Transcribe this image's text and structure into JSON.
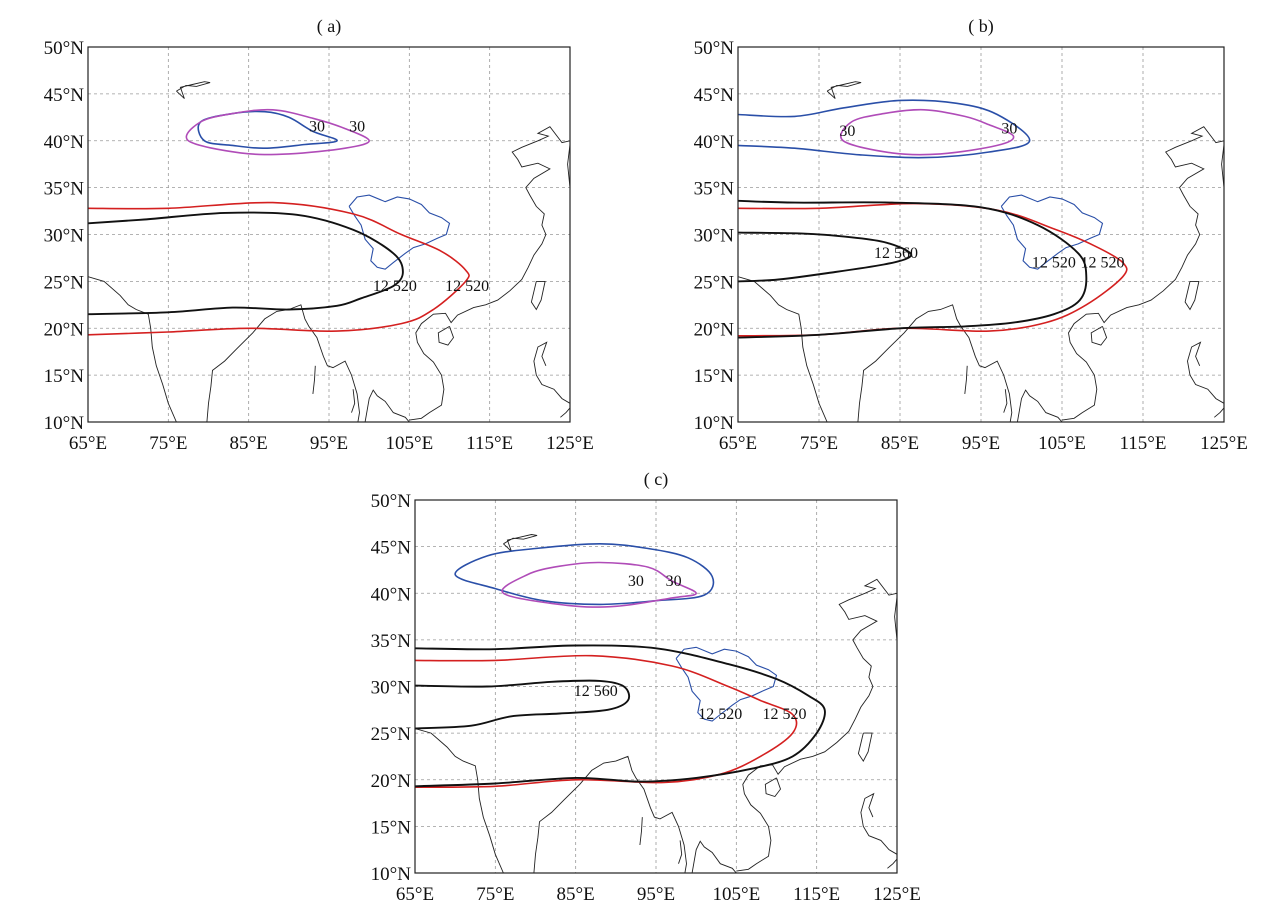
{
  "panels": [
    {
      "id": "a",
      "title": "( a)",
      "lon_ticks": [
        "65°E",
        "75°E",
        "85°E",
        "95°E",
        "105°E",
        "115°E",
        "125°E"
      ],
      "lat_ticks": [
        "10°N",
        "15°N",
        "20°N",
        "25°N",
        "30°N",
        "35°N",
        "40°N",
        "45°N",
        "50°N"
      ],
      "contours": [
        {
          "kind": "red-12520",
          "color": "#d42020",
          "points": [
            [
              65,
              32.8
            ],
            [
              75,
              32.8
            ],
            [
              88,
              33.4
            ],
            [
              98,
              32.2
            ],
            [
              104,
              30
            ],
            [
              109,
              28.2
            ],
            [
              112,
              26.2
            ],
            [
              112,
              25
            ],
            [
              108,
              22
            ],
            [
              104,
              20.5
            ],
            [
              96,
              19.7
            ],
            [
              85,
              20
            ],
            [
              75,
              19.6
            ],
            [
              65,
              19.3
            ]
          ],
          "closed": false
        },
        {
          "kind": "black-12520",
          "color": "#111111",
          "points": [
            [
              65,
              31.2
            ],
            [
              72,
              31.6
            ],
            [
              82,
              32.3
            ],
            [
              91,
              32.1
            ],
            [
              98,
              30.5
            ],
            [
              103,
              28
            ],
            [
              104.2,
              26
            ],
            [
              103,
              24.5
            ],
            [
              99,
              23.2
            ],
            [
              96,
              22.4
            ],
            [
              90,
              22
            ],
            [
              83,
              22.2
            ],
            [
              75,
              21.7
            ],
            [
              65,
              21.5
            ]
          ],
          "closed": false
        },
        {
          "kind": "blue-30",
          "color": "#2a4fa8",
          "points": [
            [
              79,
              42
            ],
            [
              83,
              42.9
            ],
            [
              87,
              43.1
            ],
            [
              90,
              42.5
            ],
            [
              93,
              41
            ],
            [
              96,
              40
            ],
            [
              92,
              39.6
            ],
            [
              87,
              39.2
            ],
            [
              83,
              39.5
            ],
            [
              79.5,
              40
            ]
          ],
          "closed": true
        },
        {
          "kind": "magenta-30",
          "color": "#b04cb8",
          "points": [
            [
              79,
              42
            ],
            [
              83,
              42.9
            ],
            [
              88,
              43.3
            ],
            [
              93,
              42.4
            ],
            [
              97,
              41.3
            ],
            [
              100,
              40
            ],
            [
              97,
              39.2
            ],
            [
              90,
              38.6
            ],
            [
              84,
              38.7
            ],
            [
              77.5,
              40
            ]
          ],
          "closed": true
        }
      ],
      "labels": [
        {
          "text": "30",
          "lon": 93.5,
          "lat": 41
        },
        {
          "text": "30",
          "lon": 98.5,
          "lat": 41
        },
        {
          "text": "12 520",
          "lon": 103.2,
          "lat": 24
        },
        {
          "text": "12 520",
          "lon": 112.2,
          "lat": 24
        }
      ]
    },
    {
      "id": "b",
      "title": "( b)",
      "lon_ticks": [
        "65°E",
        "75°E",
        "85°E",
        "95°E",
        "105°E",
        "115°E",
        "125°E"
      ],
      "lat_ticks": [
        "10°N",
        "15°N",
        "20°N",
        "25°N",
        "30°N",
        "35°N",
        "40°N",
        "45°N",
        "50°N"
      ],
      "contours": [
        {
          "kind": "red-12520",
          "color": "#d42020",
          "points": [
            [
              65,
              32.8
            ],
            [
              75,
              32.8
            ],
            [
              87,
              33.3
            ],
            [
              97,
              32.6
            ],
            [
              104,
              30.6
            ],
            [
              109,
              28.8
            ],
            [
              112.5,
              27
            ],
            [
              112.5,
              25.5
            ],
            [
              108,
              22.5
            ],
            [
              103,
              20.6
            ],
            [
              96,
              19.7
            ],
            [
              85,
              20
            ],
            [
              75,
              19.3
            ],
            [
              65,
              19.2
            ]
          ],
          "closed": false
        },
        {
          "kind": "black-12520",
          "color": "#111111",
          "points": [
            [
              65,
              33.6
            ],
            [
              72,
              33.4
            ],
            [
              84,
              33.4
            ],
            [
              95,
              32.9
            ],
            [
              102,
              31
            ],
            [
              107,
              28
            ],
            [
              108,
              25.5
            ],
            [
              107.2,
              23
            ],
            [
              104,
              21.5
            ],
            [
              99,
              20.6
            ],
            [
              93,
              20.2
            ],
            [
              85,
              20
            ],
            [
              75,
              19.3
            ],
            [
              65,
              19
            ]
          ],
          "closed": false
        },
        {
          "kind": "black-12560",
          "color": "#111111",
          "points": [
            [
              65,
              30.2
            ],
            [
              73,
              30.1
            ],
            [
              79,
              29.7
            ],
            [
              83,
              29.2
            ],
            [
              86,
              28.2
            ],
            [
              86,
              27.5
            ],
            [
              83,
              26.8
            ],
            [
              77,
              26
            ],
            [
              70,
              25.2
            ],
            [
              65,
              25
            ]
          ],
          "closed": false
        },
        {
          "kind": "blue-30",
          "color": "#2a4fa8",
          "points": [
            [
              65,
              42.8
            ],
            [
              72,
              42.6
            ],
            [
              78,
              43.5
            ],
            [
              85,
              44.3
            ],
            [
              92,
              44
            ],
            [
              97,
              42.8
            ],
            [
              101,
              40
            ],
            [
              96,
              38.8
            ],
            [
              88,
              38.2
            ],
            [
              80,
              38.5
            ],
            [
              72,
              39.2
            ],
            [
              65,
              39.5
            ]
          ],
          "closed": false
        },
        {
          "kind": "magenta-30",
          "color": "#b04cb8",
          "points": [
            [
              79,
              42
            ],
            [
              83,
              42.9
            ],
            [
              88,
              43.3
            ],
            [
              93,
              42.6
            ],
            [
              96,
              41.7
            ],
            [
              99,
              40.5
            ],
            [
              97,
              39.5
            ],
            [
              90,
              38.6
            ],
            [
              84,
              38.7
            ],
            [
              78,
              40
            ]
          ],
          "closed": true
        }
      ],
      "labels": [
        {
          "text": "30",
          "lon": 78.5,
          "lat": 40.5
        },
        {
          "text": "30",
          "lon": 98.5,
          "lat": 40.8
        },
        {
          "text": "12 560",
          "lon": 84.5,
          "lat": 27.5
        },
        {
          "text": "12 520",
          "lon": 104,
          "lat": 26.5
        },
        {
          "text": "12 520",
          "lon": 110,
          "lat": 26.5
        }
      ]
    },
    {
      "id": "c",
      "title": "( c)",
      "lon_ticks": [
        "65°E",
        "75°E",
        "85°E",
        "95°E",
        "105°E",
        "115°E",
        "125°E"
      ],
      "lat_ticks": [
        "10°N",
        "15°N",
        "20°N",
        "25°N",
        "30°N",
        "35°N",
        "40°N",
        "45°N",
        "50°N"
      ],
      "contours": [
        {
          "kind": "red-12520",
          "color": "#d42020",
          "points": [
            [
              65,
              32.8
            ],
            [
              75,
              32.8
            ],
            [
              87,
              33.3
            ],
            [
              97,
              32.2
            ],
            [
              104,
              30
            ],
            [
              108,
              28.5
            ],
            [
              112,
              27
            ],
            [
              112,
              25
            ],
            [
              108,
              22.5
            ],
            [
              103,
              20.6
            ],
            [
              96,
              19.7
            ],
            [
              85,
              20
            ],
            [
              75,
              19.3
            ],
            [
              65,
              19.2
            ]
          ],
          "closed": false
        },
        {
          "kind": "black-12520",
          "color": "#111111",
          "points": [
            [
              65,
              34.1
            ],
            [
              75,
              34
            ],
            [
              85,
              34.4
            ],
            [
              95,
              34.1
            ],
            [
              104,
              32.4
            ],
            [
              110,
              30.8
            ],
            [
              114,
              29
            ],
            [
              116,
              27.5
            ],
            [
              115,
              25
            ],
            [
              112,
              22.5
            ],
            [
              107,
              21.2
            ],
            [
              100,
              20.2
            ],
            [
              93,
              19.8
            ],
            [
              85,
              20.2
            ],
            [
              75,
              19.6
            ],
            [
              65,
              19.3
            ]
          ],
          "closed": false
        },
        {
          "kind": "black-12560",
          "color": "#111111",
          "points": [
            [
              65,
              30.1
            ],
            [
              74,
              30
            ],
            [
              82,
              30.5
            ],
            [
              88,
              30.6
            ],
            [
              91,
              30
            ],
            [
              91.5,
              28.5
            ],
            [
              89,
              27.5
            ],
            [
              83,
              27.1
            ],
            [
              77,
              26.8
            ],
            [
              72,
              25.8
            ],
            [
              65,
              25.5
            ]
          ],
          "closed": false
        },
        {
          "kind": "blue-30",
          "color": "#2a4fa8",
          "points": [
            [
              70,
              42
            ],
            [
              74,
              44
            ],
            [
              80,
              44.8
            ],
            [
              88,
              45.3
            ],
            [
              94,
              44.8
            ],
            [
              99,
              43.8
            ],
            [
              102,
              41.8
            ],
            [
              101,
              39.8
            ],
            [
              95,
              39.2
            ],
            [
              88,
              38.8
            ],
            [
              81,
              39.2
            ],
            [
              75,
              40.5
            ]
          ],
          "closed": true
        },
        {
          "kind": "magenta-30",
          "color": "#b04cb8",
          "points": [
            [
              79,
              42
            ],
            [
              83,
              42.9
            ],
            [
              88,
              43.3
            ],
            [
              94,
              42.8
            ],
            [
              97,
              41.3
            ],
            [
              100,
              40
            ],
            [
              97,
              39.5
            ],
            [
              90,
              38.6
            ],
            [
              84,
              38.7
            ],
            [
              76,
              40
            ]
          ],
          "closed": true
        }
      ],
      "labels": [
        {
          "text": "30",
          "lon": 92.5,
          "lat": 40.8
        },
        {
          "text": "30",
          "lon": 97.2,
          "lat": 40.8
        },
        {
          "text": "12 560",
          "lon": 87.5,
          "lat": 29
        },
        {
          "text": "12 520",
          "lon": 103,
          "lat": 26.5
        },
        {
          "text": "12 520",
          "lon": 111,
          "lat": 26.5
        }
      ]
    }
  ],
  "map_extent": {
    "lon_min": 65,
    "lon_max": 125,
    "lat_min": 10,
    "lat_max": 50
  },
  "colors": {
    "grid": "#9a9a9a",
    "coast": "#222222",
    "basin": "#2a4fa8"
  }
}
